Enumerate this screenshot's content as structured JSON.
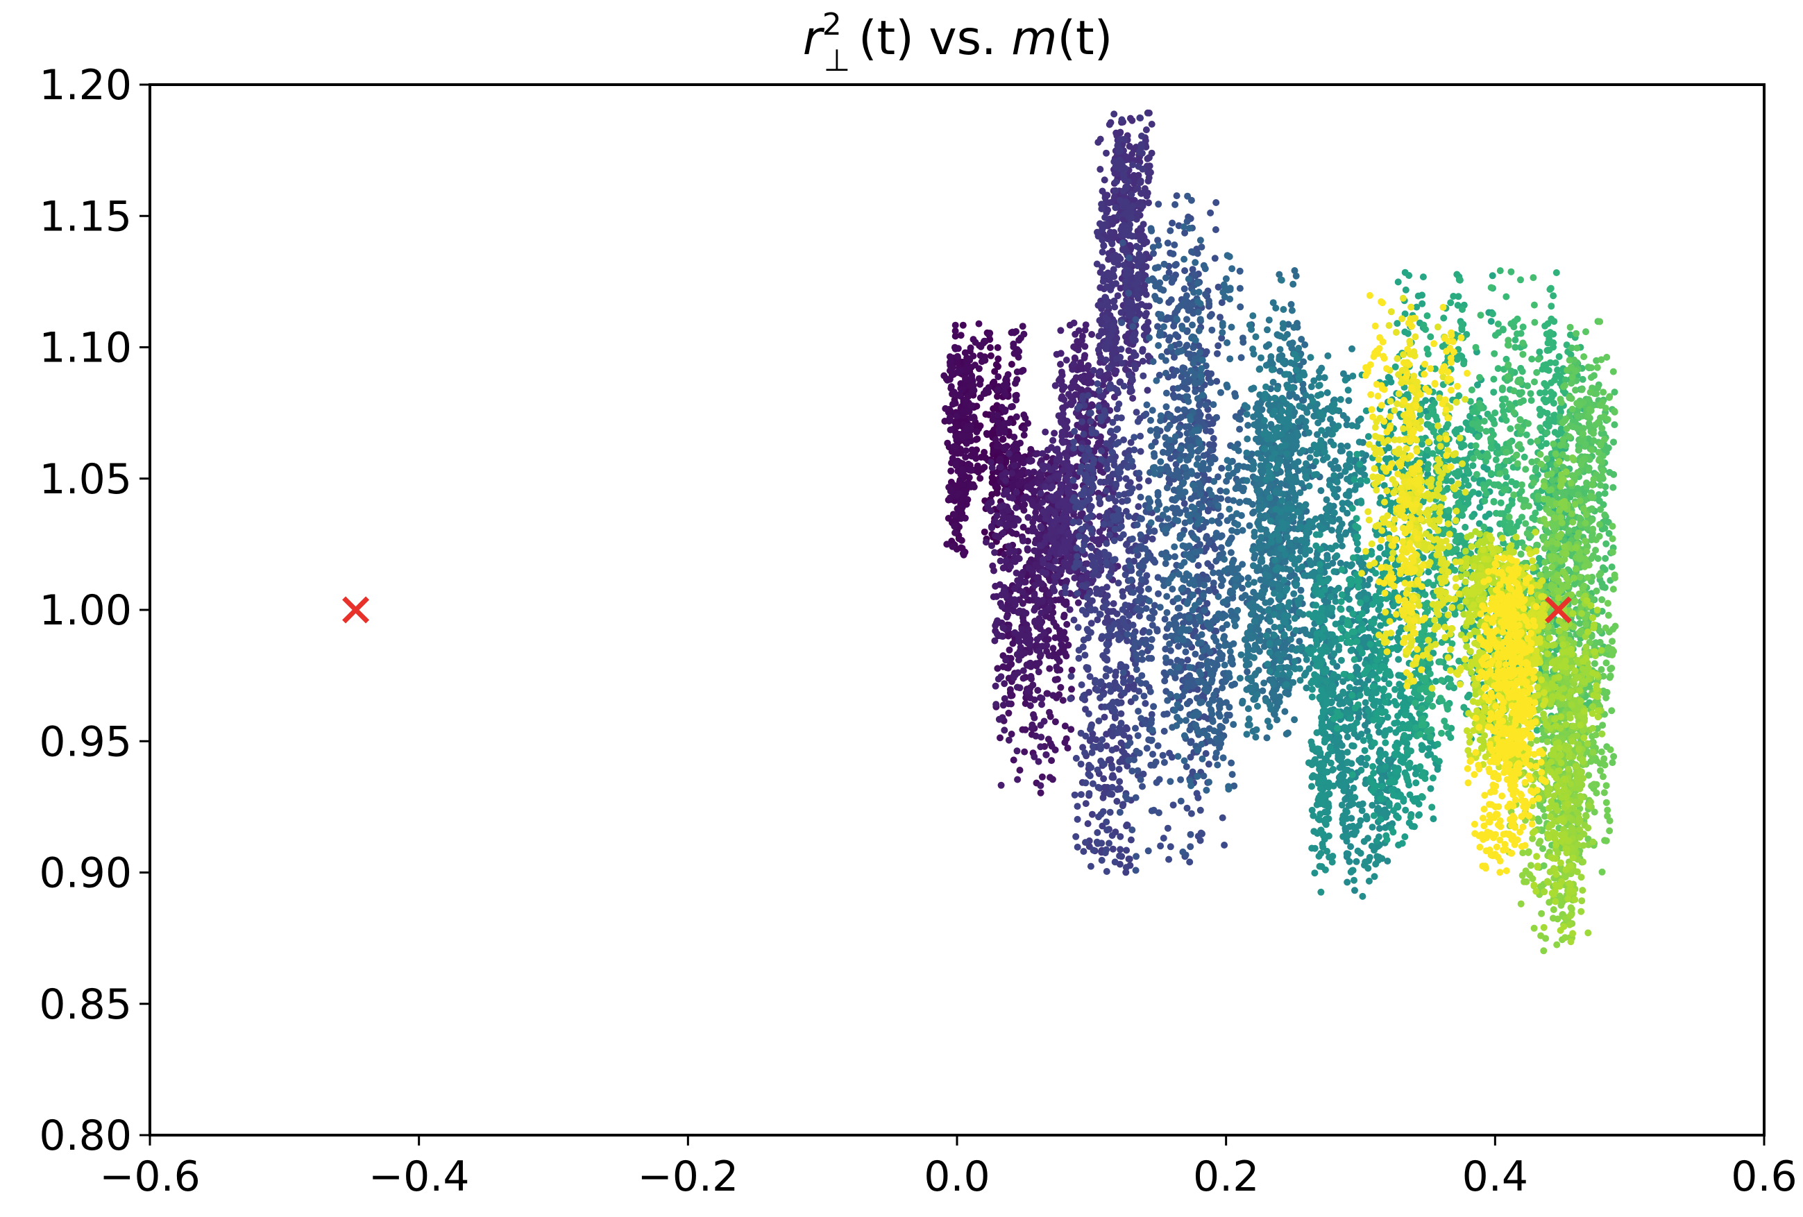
{
  "chart_data": {
    "type": "scatter",
    "title": {
      "r": "r",
      "sup": "2",
      "sub": "⊥",
      "t1": "(t)",
      "vs": " vs. ",
      "m": "m",
      "t2": "(t)"
    },
    "xlabel": "",
    "ylabel": "",
    "xlim": [
      -0.6,
      0.6
    ],
    "ylim": [
      0.8,
      1.2
    ],
    "x_ticks": [
      -0.6,
      -0.4,
      -0.2,
      0.0,
      0.2,
      0.4,
      0.6
    ],
    "x_tick_labels": [
      "−0.6",
      "−0.4",
      "−0.2",
      "0.0",
      "0.2",
      "0.4",
      "0.6"
    ],
    "y_ticks": [
      0.8,
      0.85,
      0.9,
      0.95,
      1.0,
      1.05,
      1.1,
      1.15,
      1.2
    ],
    "y_tick_labels": [
      "0.80",
      "0.85",
      "0.90",
      "0.95",
      "1.00",
      "1.05",
      "1.10",
      "1.15",
      "1.20"
    ],
    "grid": false,
    "colormap": "viridis",
    "colormap_stops": [
      "#440154",
      "#482878",
      "#3e4989",
      "#31688e",
      "#26828e",
      "#1f9e89",
      "#35b779",
      "#6ece58",
      "#b5de2b",
      "#fde725"
    ],
    "trajectory_clusters": [
      {
        "order": 0.0,
        "x_range": [
          -0.01,
          0.06
        ],
        "y_range": [
          1.02,
          1.11
        ]
      },
      {
        "order": 0.04,
        "x_range": [
          0.02,
          0.1
        ],
        "y_range": [
          0.93,
          1.06
        ]
      },
      {
        "order": 0.08,
        "x_range": [
          0.06,
          0.12
        ],
        "y_range": [
          1.0,
          1.11
        ]
      },
      {
        "order": 0.12,
        "x_range": [
          0.1,
          0.15
        ],
        "y_range": [
          1.08,
          1.19
        ]
      },
      {
        "order": 0.17,
        "x_range": [
          0.08,
          0.16
        ],
        "y_range": [
          0.9,
          1.09
        ]
      },
      {
        "order": 0.22,
        "x_range": [
          0.12,
          0.2
        ],
        "y_range": [
          0.9,
          1.16
        ]
      },
      {
        "order": 0.28,
        "x_range": [
          0.14,
          0.22
        ],
        "y_range": [
          0.93,
          1.15
        ]
      },
      {
        "order": 0.34,
        "x_range": [
          0.2,
          0.27
        ],
        "y_range": [
          0.95,
          1.13
        ]
      },
      {
        "order": 0.4,
        "x_range": [
          0.22,
          0.32
        ],
        "y_range": [
          0.97,
          1.1
        ]
      },
      {
        "order": 0.46,
        "x_range": [
          0.26,
          0.33
        ],
        "y_range": [
          0.89,
          1.03
        ]
      },
      {
        "order": 0.52,
        "x_range": [
          0.28,
          0.36
        ],
        "y_range": [
          0.91,
          1.09
        ]
      },
      {
        "order": 0.58,
        "x_range": [
          0.32,
          0.4
        ],
        "y_range": [
          0.95,
          1.13
        ]
      },
      {
        "order": 0.64,
        "x_range": [
          0.38,
          0.47
        ],
        "y_range": [
          0.95,
          1.13
        ]
      },
      {
        "order": 0.7,
        "x_range": [
          0.4,
          0.49
        ],
        "y_range": [
          0.96,
          1.11
        ]
      },
      {
        "order": 0.76,
        "x_range": [
          0.43,
          0.49
        ],
        "y_range": [
          0.9,
          1.06
        ]
      },
      {
        "order": 0.82,
        "x_range": [
          0.41,
          0.48
        ],
        "y_range": [
          0.87,
          1.01
        ]
      },
      {
        "order": 0.88,
        "x_range": [
          0.36,
          0.44
        ],
        "y_range": [
          0.94,
          1.03
        ]
      },
      {
        "order": 0.94,
        "x_range": [
          0.3,
          0.38
        ],
        "y_range": [
          0.97,
          1.12
        ]
      },
      {
        "order": 1.0,
        "x_range": [
          0.36,
          0.44
        ],
        "y_range": [
          0.9,
          1.02
        ]
      }
    ],
    "markers": [
      {
        "name": "x-marker-left",
        "symbol": "×",
        "color": "#e8312a",
        "x": -0.447,
        "y": 1.0
      },
      {
        "name": "x-marker-right",
        "symbol": "×",
        "color": "#e8312a",
        "x": 0.447,
        "y": 1.0
      }
    ]
  }
}
